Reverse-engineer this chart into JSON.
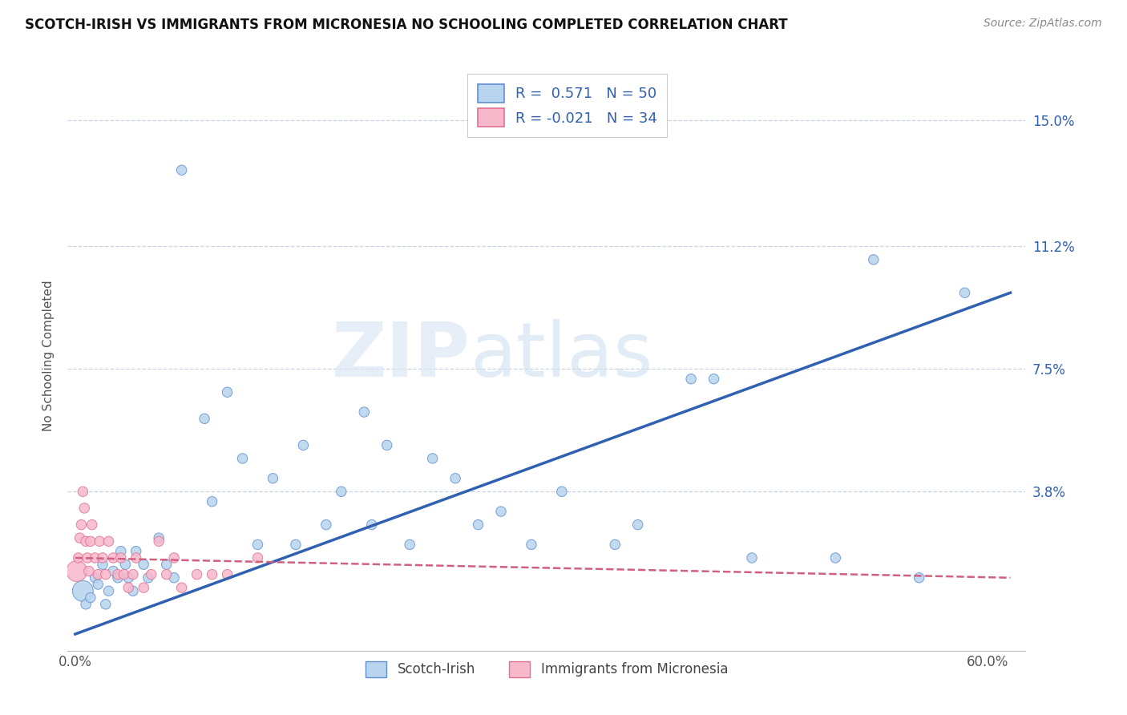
{
  "title": "SCOTCH-IRISH VS IMMIGRANTS FROM MICRONESIA NO SCHOOLING COMPLETED CORRELATION CHART",
  "source": "Source: ZipAtlas.com",
  "legend_label1": "Scotch-Irish",
  "legend_label2": "Immigrants from Micronesia",
  "ylabel": "No Schooling Completed",
  "xlim": [
    -0.005,
    0.625
  ],
  "ylim": [
    -0.01,
    0.168
  ],
  "R1": "0.571",
  "N1": "50",
  "R2": "-0.021",
  "N2": "34",
  "color_blue_fill": "#b8d4ee",
  "color_blue_edge": "#6090d0",
  "color_pink_fill": "#f8b8cc",
  "color_pink_edge": "#e07090",
  "line_blue_color": "#3060b0",
  "line_pink_color": "#d06080",
  "grid_color": "#c8d4e4",
  "y_tick_vals": [
    0.0,
    0.038,
    0.075,
    0.112,
    0.15
  ],
  "y_tick_labels_right": [
    "",
    "3.8%",
    "7.5%",
    "11.2%",
    "15.0%"
  ],
  "x_tick_vals": [
    0.0,
    0.6
  ],
  "x_tick_labels": [
    "0.0%",
    "60.0%"
  ],
  "blue_line_x": [
    0.0,
    0.615
  ],
  "blue_line_y": [
    -0.005,
    0.098
  ],
  "pink_line_x": [
    0.0,
    0.615
  ],
  "pink_line_y": [
    0.018,
    0.012
  ],
  "blue_x": [
    0.005,
    0.007,
    0.01,
    0.013,
    0.015,
    0.018,
    0.02,
    0.022,
    0.025,
    0.028,
    0.03,
    0.033,
    0.035,
    0.038,
    0.04,
    0.045,
    0.048,
    0.055,
    0.06,
    0.065,
    0.07,
    0.085,
    0.09,
    0.1,
    0.11,
    0.12,
    0.13,
    0.145,
    0.15,
    0.165,
    0.175,
    0.19,
    0.195,
    0.205,
    0.22,
    0.235,
    0.25,
    0.265,
    0.28,
    0.3,
    0.32,
    0.355,
    0.37,
    0.405,
    0.42,
    0.445,
    0.5,
    0.525,
    0.555,
    0.585
  ],
  "blue_y": [
    0.008,
    0.004,
    0.006,
    0.012,
    0.01,
    0.016,
    0.004,
    0.008,
    0.014,
    0.012,
    0.02,
    0.016,
    0.012,
    0.008,
    0.02,
    0.016,
    0.012,
    0.024,
    0.016,
    0.012,
    0.135,
    0.06,
    0.035,
    0.068,
    0.048,
    0.022,
    0.042,
    0.022,
    0.052,
    0.028,
    0.038,
    0.062,
    0.028,
    0.052,
    0.022,
    0.048,
    0.042,
    0.028,
    0.032,
    0.022,
    0.038,
    0.022,
    0.028,
    0.072,
    0.072,
    0.018,
    0.018,
    0.108,
    0.012,
    0.098
  ],
  "pink_x": [
    0.001,
    0.002,
    0.003,
    0.004,
    0.005,
    0.006,
    0.007,
    0.008,
    0.009,
    0.01,
    0.011,
    0.013,
    0.015,
    0.016,
    0.018,
    0.02,
    0.022,
    0.025,
    0.028,
    0.03,
    0.032,
    0.035,
    0.038,
    0.04,
    0.045,
    0.05,
    0.055,
    0.06,
    0.065,
    0.07,
    0.08,
    0.09,
    0.1,
    0.12
  ],
  "pink_y": [
    0.014,
    0.018,
    0.024,
    0.028,
    0.038,
    0.033,
    0.023,
    0.018,
    0.014,
    0.023,
    0.028,
    0.018,
    0.013,
    0.023,
    0.018,
    0.013,
    0.023,
    0.018,
    0.013,
    0.018,
    0.013,
    0.009,
    0.013,
    0.018,
    0.009,
    0.013,
    0.023,
    0.013,
    0.018,
    0.009,
    0.013,
    0.013,
    0.013,
    0.018
  ],
  "blue_large_idx": 0,
  "pink_large_idx": 0,
  "base_size": 80,
  "large_size": 350
}
